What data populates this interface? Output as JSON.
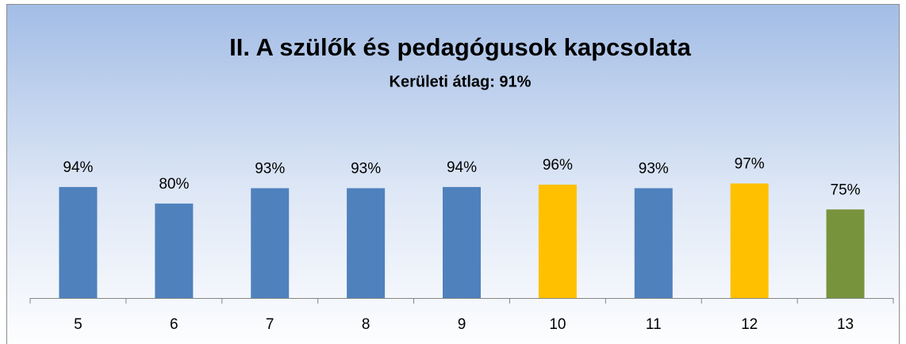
{
  "chart_data": {
    "type": "bar",
    "title": "II. A szülők és pedagógusok kapcsolata",
    "subtitle": "Kerületi átlag: 91%",
    "categories": [
      "5",
      "6",
      "7",
      "8",
      "9",
      "10",
      "11",
      "12",
      "13"
    ],
    "values": [
      94,
      80,
      93,
      93,
      94,
      96,
      93,
      97,
      75
    ],
    "value_labels": [
      "94%",
      "80%",
      "93%",
      "93%",
      "94%",
      "96%",
      "93%",
      "97%",
      "75%"
    ],
    "colors": [
      "#4f81bd",
      "#4f81bd",
      "#4f81bd",
      "#4f81bd",
      "#4f81bd",
      "#ffc000",
      "#4f81bd",
      "#ffc000",
      "#77933c"
    ],
    "ylim": [
      0,
      100
    ]
  }
}
